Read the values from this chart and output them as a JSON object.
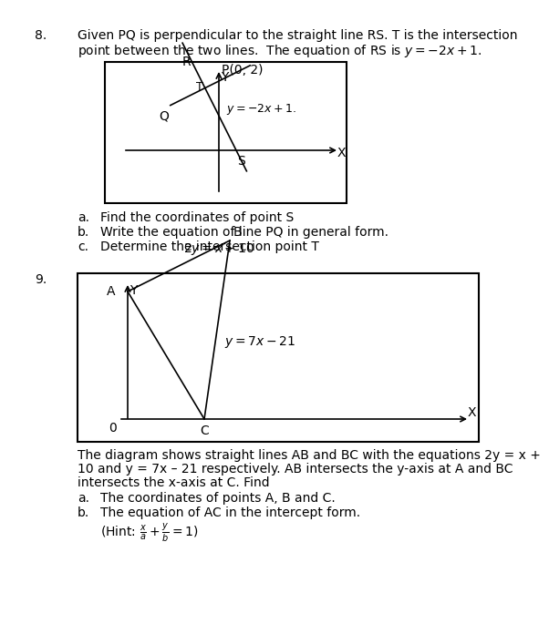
{
  "bg_color": "#ffffff",
  "border_color": "#000000",
  "q8_number": "8.",
  "q8_text_line1": "Given PQ is perpendicular to the straight line RS. T is the intersection",
  "q8_text_line2": "point between the two lines.  The equation of RS is $y = -2x + 1$.",
  "q8_sub_a": "a.\tFind the coordinates of point S",
  "q8_sub_b": "b.\tWrite the equation of line PQ in general form.",
  "q8_sub_c": "c.\tDetermine the intersection point T",
  "q9_number": "9.",
  "q9_text_line1": "The diagram shows straight lines AB and BC with the equations 2y = x +",
  "q9_text_line2": "10 and y = 7x – 21 respectively. AB intersects the y-axis at A and BC",
  "q9_text_line3": "intersects the x-axis at C. Find",
  "q9_sub_a": "a.\tThe coordinates of points A, B and C.",
  "q9_sub_b": "b.\tThe equation of AC in the intercept form.",
  "q9_hint": "(Hint: $\\frac{x}{a}+\\frac{y}{b}=1$)"
}
